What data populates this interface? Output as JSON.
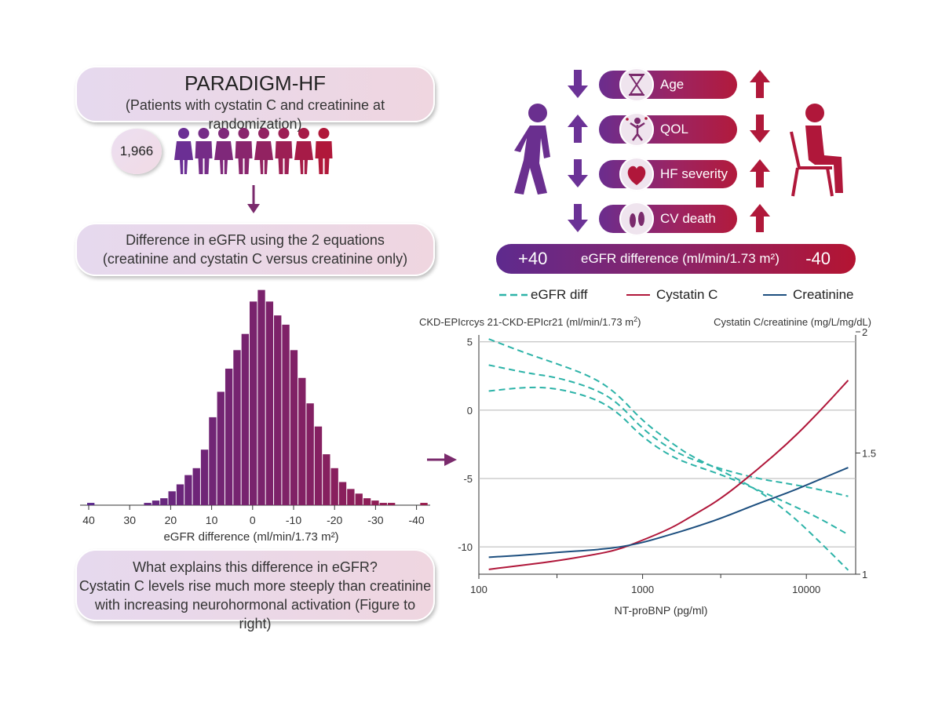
{
  "top_box": {
    "title": "PARADIGM-HF",
    "subtitle": "(Patients with cystatin C and creatinine at randomization)"
  },
  "patient_count": "1,966",
  "middle_box": {
    "line1": "Difference in eGFR using the 2 equations",
    "line2": "(creatinine and cystatin C versus creatinine only)"
  },
  "histogram": {
    "xlabel": "eGFR difference (ml/min/1.73 m²)",
    "ticks": [
      "40",
      "30",
      "20",
      "10",
      "0",
      "-10",
      "-20",
      "-30",
      "-40"
    ],
    "heights": [
      1,
      0,
      0,
      0,
      0,
      0,
      0,
      1,
      2,
      3,
      6,
      9,
      13,
      16,
      24,
      38,
      49,
      59,
      67,
      74,
      88,
      93,
      88,
      82,
      78,
      67,
      55,
      44,
      34,
      22,
      16,
      10,
      7,
      5,
      3,
      2,
      1,
      1,
      0,
      0,
      0,
      1,
      0,
      1
    ],
    "color_start": "#5b2a8c",
    "color_end": "#9b1b4a"
  },
  "bottom_box": {
    "line1": "What explains this difference in eGFR?",
    "line2": "Cystatin C levels rise much more steeply than creatinine",
    "line3": "with increasing neurohormonal activation (Figure to right)"
  },
  "factors": [
    {
      "label": "Age",
      "icon": "hourglass-icon",
      "left_arrow": "down",
      "right_arrow": "up"
    },
    {
      "label": "QOL",
      "icon": "jumping-person-icon",
      "left_arrow": "up",
      "right_arrow": "down"
    },
    {
      "label": "HF severity",
      "icon": "heart-icon",
      "left_arrow": "down",
      "right_arrow": "up"
    },
    {
      "label": "CV death",
      "icon": "footprints-icon",
      "left_arrow": "down",
      "right_arrow": "up"
    }
  ],
  "egfr_bar": {
    "left": "+40",
    "center": "eGFR difference (ml/min/1.73 m²)",
    "right": "-40"
  },
  "legend": {
    "egfr": "eGFR diff",
    "cystatin": "Cystatin C",
    "creatinine": "Creatinine"
  },
  "colors": {
    "purple": "#6a2f8f",
    "crimson": "#b0173a",
    "teal": "#2db3a8",
    "navy": "#1d4f7f",
    "arrow_purple": "#6b3296",
    "arrow_red": "#b0183a"
  },
  "chart_data": {
    "type": "line",
    "title": "",
    "ylabel_left": "CKD-EPIcrcys 21-CKD-EPIcr21 (ml/min/1.73 m",
    "ylabel_left_sup": "2",
    "ylabel_left_close": ")",
    "ylabel_right": "Cystatin C/creatinine (mg/L/mg/dL)",
    "xlabel": "NT-proBNP (pg/ml)",
    "x_scale": "log",
    "xlim": [
      100,
      20000
    ],
    "ylim_left": [
      -12,
      5.5
    ],
    "ylim_right": [
      1.0,
      2.0
    ],
    "x_ticks": [
      "100",
      "1000",
      "10000"
    ],
    "y_ticks_left": [
      "5",
      "0",
      "-5",
      "-10"
    ],
    "y_ticks_right": [
      "2",
      "1.5",
      "1"
    ],
    "series": [
      {
        "name": "eGFR diff",
        "axis": "left",
        "style": "dashed",
        "x": [
          115,
          200,
          300,
          500,
          700,
          1000,
          1500,
          2000,
          3000,
          5000,
          8000,
          12000,
          18000
        ],
        "y": [
          5.2,
          4.1,
          3.4,
          2.4,
          1.2,
          -0.8,
          -2.4,
          -3.4,
          -4.4,
          -5.8,
          -7.6,
          -9.6,
          -11.7
        ]
      },
      {
        "name": "eGFR diff upper",
        "axis": "left",
        "style": "dashed",
        "x": [
          115,
          200,
          300,
          500,
          700,
          1000,
          1500,
          2000,
          3000,
          5000,
          8000,
          12000,
          18000
        ],
        "y": [
          3.3,
          2.7,
          2.4,
          1.6,
          0.6,
          -1.4,
          -2.9,
          -3.6,
          -4.3,
          -5.0,
          -5.4,
          -5.8,
          -6.3
        ]
      },
      {
        "name": "eGFR diff lower",
        "axis": "left",
        "style": "dashed",
        "x": [
          115,
          200,
          300,
          500,
          700,
          1000,
          1500,
          2000,
          3000,
          5000,
          8000,
          12000,
          18000
        ],
        "y": [
          1.4,
          1.7,
          1.6,
          0.9,
          -0.1,
          -2.0,
          -3.4,
          -4.0,
          -4.7,
          -5.8,
          -6.9,
          -7.9,
          -9.1
        ]
      },
      {
        "name": "Cystatin C",
        "axis": "right",
        "x": [
          115,
          200,
          300,
          500,
          700,
          1000,
          1500,
          2000,
          3000,
          5000,
          8000,
          12000,
          18000
        ],
        "y": [
          1.02,
          1.04,
          1.055,
          1.08,
          1.1,
          1.14,
          1.19,
          1.24,
          1.31,
          1.43,
          1.55,
          1.67,
          1.8
        ]
      },
      {
        "name": "Creatinine",
        "axis": "right",
        "x": [
          115,
          200,
          300,
          500,
          700,
          1000,
          1500,
          2000,
          3000,
          5000,
          8000,
          12000,
          18000
        ],
        "y": [
          1.07,
          1.08,
          1.09,
          1.1,
          1.11,
          1.13,
          1.165,
          1.19,
          1.23,
          1.29,
          1.34,
          1.39,
          1.44
        ]
      }
    ]
  }
}
